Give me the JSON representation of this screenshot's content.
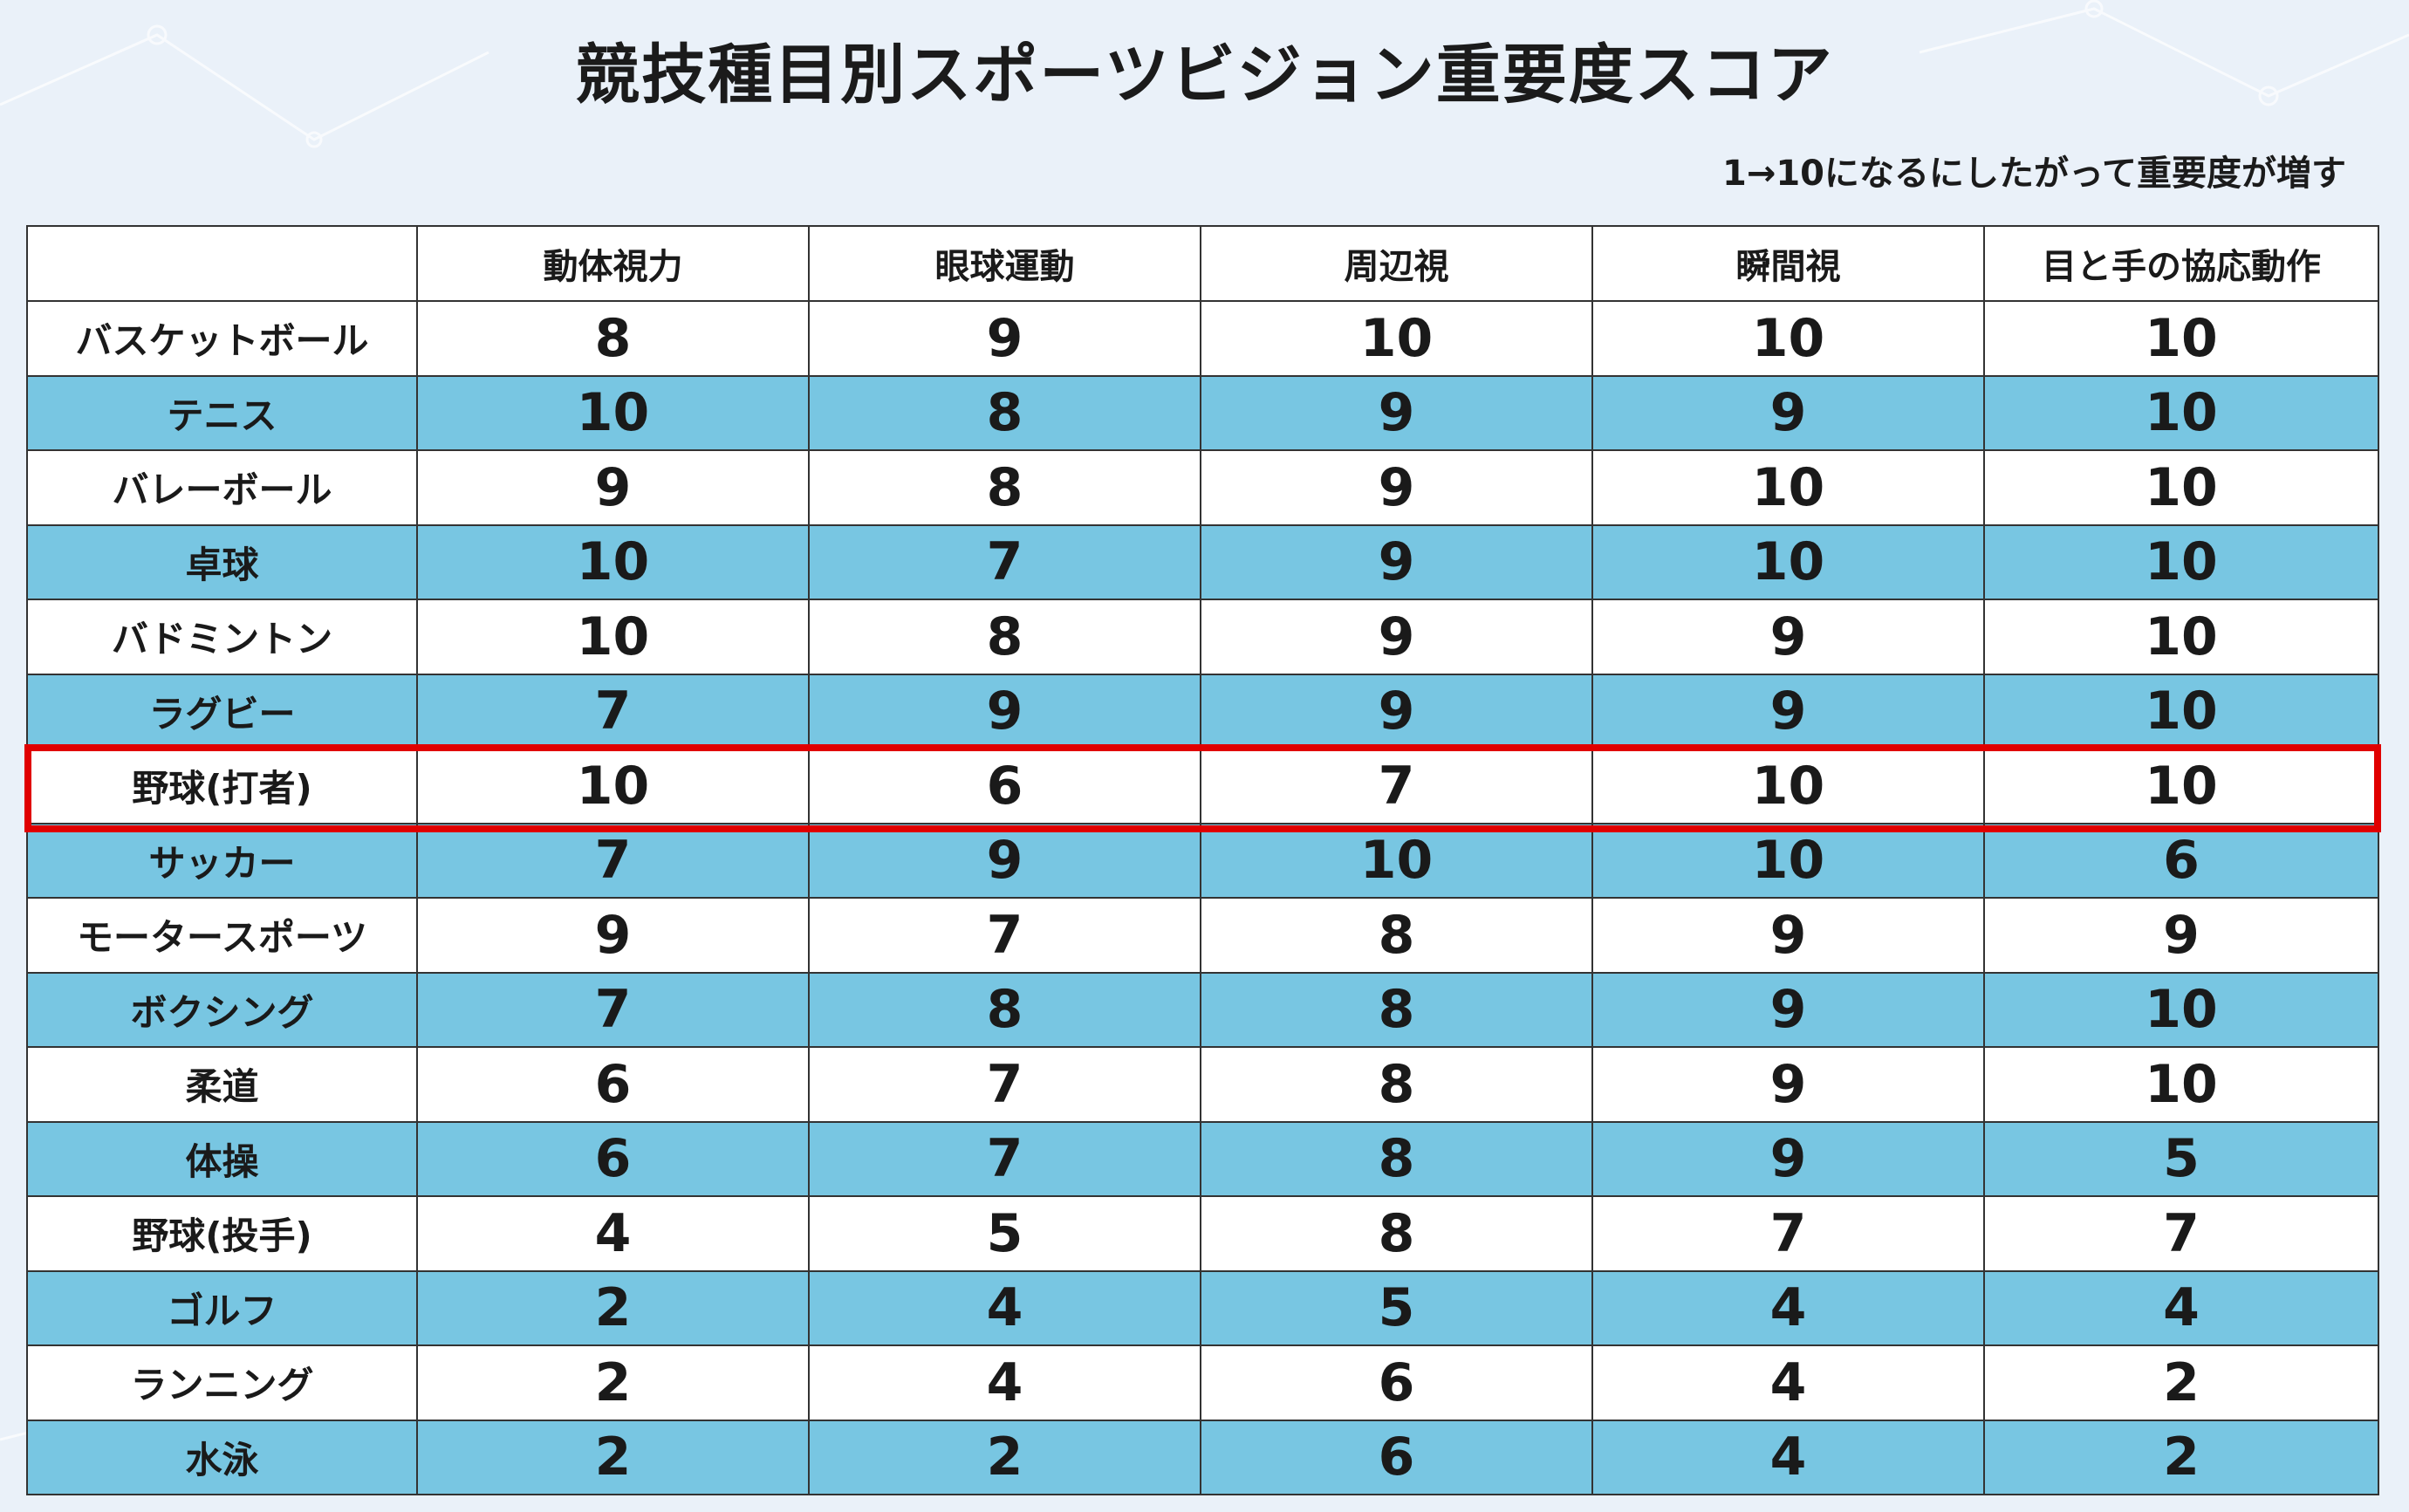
{
  "title": "競技種目別スポーツビジョン重要度スコア",
  "subtitle": "1→10になるにしたがって重要度が増す",
  "table": {
    "columns": [
      "",
      "動体視力",
      "眼球運動",
      "周辺視",
      "瞬間視",
      "目と手の協応動作"
    ],
    "rows": [
      {
        "sport": "バスケットボール",
        "scores": [
          "8",
          "9",
          "10",
          "10",
          "10"
        ]
      },
      {
        "sport": "テニス",
        "scores": [
          "10",
          "8",
          "9",
          "9",
          "10"
        ]
      },
      {
        "sport": "バレーボール",
        "scores": [
          "9",
          "8",
          "9",
          "10",
          "10"
        ]
      },
      {
        "sport": "卓球",
        "scores": [
          "10",
          "7",
          "9",
          "10",
          "10"
        ]
      },
      {
        "sport": "バドミントン",
        "scores": [
          "10",
          "8",
          "9",
          "9",
          "10"
        ]
      },
      {
        "sport": "ラグビー",
        "scores": [
          "7",
          "9",
          "9",
          "9",
          "10"
        ]
      },
      {
        "sport": "野球(打者)",
        "scores": [
          "10",
          "6",
          "7",
          "10",
          "10"
        ]
      },
      {
        "sport": "サッカー",
        "scores": [
          "7",
          "9",
          "10",
          "10",
          "6"
        ]
      },
      {
        "sport": "モータースポーツ",
        "scores": [
          "9",
          "7",
          "8",
          "9",
          "9"
        ]
      },
      {
        "sport": "ボクシング",
        "scores": [
          "7",
          "8",
          "8",
          "9",
          "10"
        ]
      },
      {
        "sport": "柔道",
        "scores": [
          "6",
          "7",
          "8",
          "9",
          "10"
        ]
      },
      {
        "sport": "体操",
        "scores": [
          "6",
          "7",
          "8",
          "9",
          "5"
        ]
      },
      {
        "sport": "野球(投手)",
        "scores": [
          "4",
          "5",
          "8",
          "7",
          "7"
        ]
      },
      {
        "sport": "ゴルフ",
        "scores": [
          "2",
          "4",
          "5",
          "4",
          "4"
        ]
      },
      {
        "sport": "ランニング",
        "scores": [
          "2",
          "4",
          "6",
          "4",
          "2"
        ]
      },
      {
        "sport": "水泳",
        "scores": [
          "2",
          "2",
          "6",
          "4",
          "2"
        ]
      }
    ],
    "highlighted_row": "野球(打者)"
  },
  "colors": {
    "background": "#eaf1f9",
    "row_white": "#ffffff",
    "row_blue": "#78c6e2",
    "highlight": "#e00000",
    "border": "#333333"
  }
}
